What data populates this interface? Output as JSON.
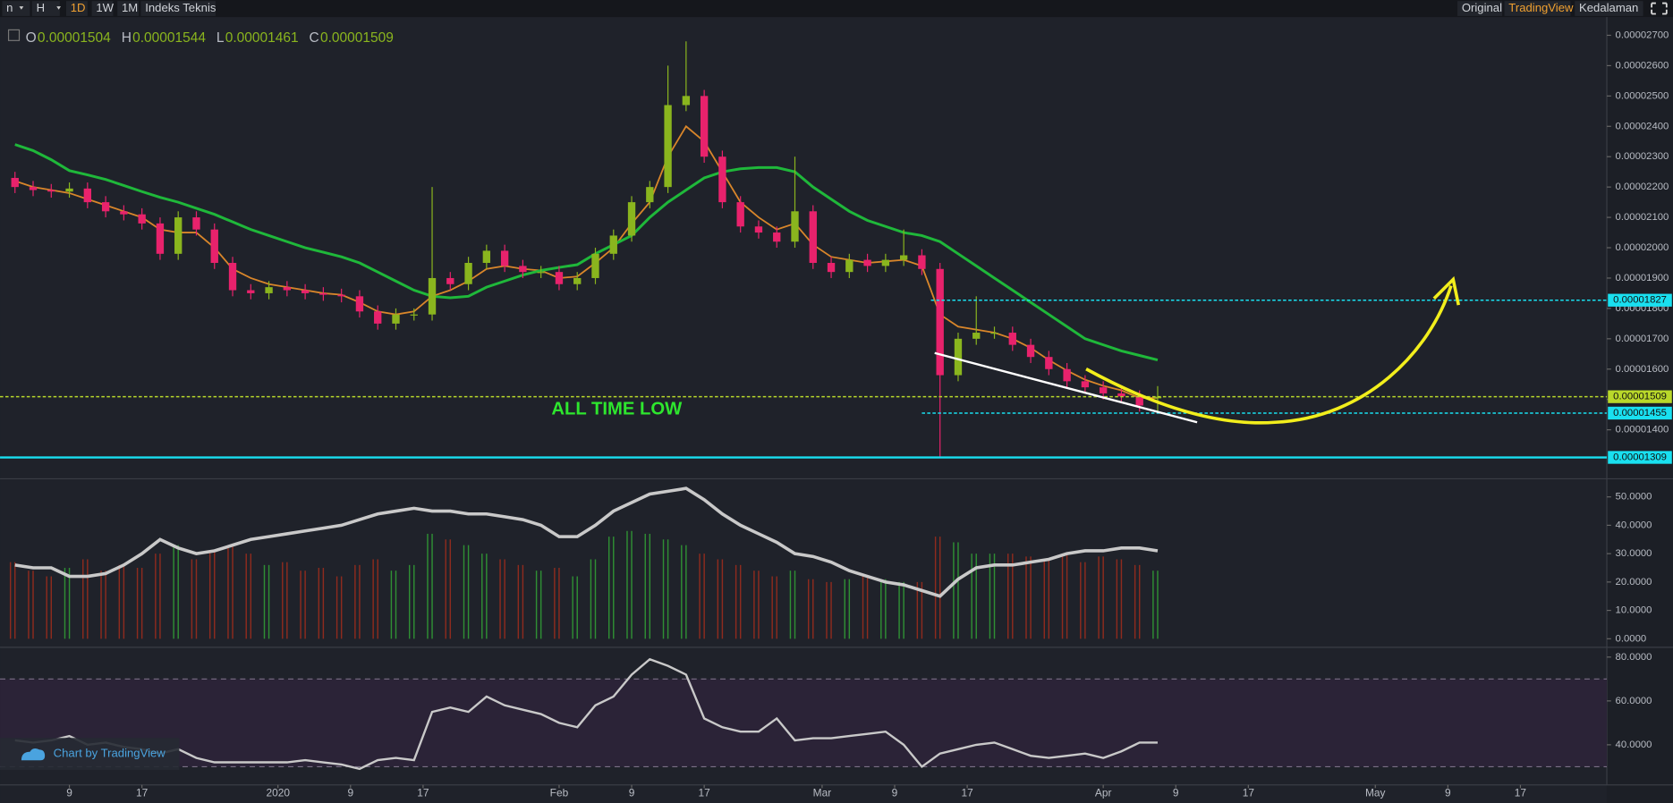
{
  "toolbar": {
    "left": [
      "n",
      "H",
      "1D",
      "1W",
      "1M",
      "Indeks Teknis"
    ],
    "left_active": 2,
    "right": [
      "Original",
      "TradingView",
      "Kedalaman"
    ],
    "right_active": 1
  },
  "ohlc": [
    {
      "key": "O",
      "text": "0.00001504"
    },
    {
      "key": "H",
      "text": "0.00001544"
    },
    {
      "key": "L",
      "text": "0.00001461"
    },
    {
      "key": "C",
      "text": "0.00001509"
    }
  ],
  "annotation": "ALL TIME LOW",
  "watermark": "Chart by TradingView",
  "chart_data": [
    {
      "type": "candlestick",
      "x": [
        -6,
        -4,
        -2,
        0,
        2,
        4,
        6,
        8,
        10,
        12,
        14,
        16,
        18,
        20,
        22,
        24,
        26,
        28,
        30,
        32,
        34,
        36,
        38,
        40,
        42,
        44,
        46,
        48,
        50,
        52,
        54,
        56,
        58,
        60,
        62,
        64,
        66,
        68,
        70,
        72,
        74,
        76,
        78,
        80,
        82,
        84,
        86,
        88,
        90,
        92,
        94,
        96,
        98,
        100,
        102,
        104,
        106,
        108,
        110,
        112,
        114,
        116,
        118,
        120
      ],
      "open": [
        2.23e-05,
        2.2e-05,
        2.19e-05,
        2.185e-05,
        2.195e-05,
        2.15e-05,
        2.12e-05,
        2.11e-05,
        2.08e-05,
        1.98e-05,
        2.1e-05,
        2.06e-05,
        1.95e-05,
        1.86e-05,
        1.85e-05,
        1.87e-05,
        1.86e-05,
        1.85e-05,
        1.845e-05,
        1.84e-05,
        1.79e-05,
        1.75e-05,
        1.78e-05,
        1.78e-05,
        1.9e-05,
        1.88e-05,
        1.95e-05,
        1.99e-05,
        1.94e-05,
        1.92e-05,
        1.92e-05,
        1.88e-05,
        1.9e-05,
        1.98e-05,
        2.04e-05,
        2.15e-05,
        2.2e-05,
        2.47e-05,
        2.5e-05,
        2.3e-05,
        2.15e-05,
        2.07e-05,
        2.05e-05,
        2.02e-05,
        2.12e-05,
        1.95e-05,
        1.92e-05,
        1.96e-05,
        1.94e-05,
        1.96e-05,
        1.975e-05,
        1.93e-05,
        1.58e-05,
        1.7e-05,
        1.72e-05,
        1.72e-05,
        1.68e-05,
        1.64e-05,
        1.6e-05,
        1.56e-05,
        1.54e-05,
        1.52e-05,
        1.51e-05,
        1.504e-05
      ],
      "high": [
        2.25e-05,
        2.22e-05,
        2.21e-05,
        2.215e-05,
        2.215e-05,
        2.17e-05,
        2.14e-05,
        2.13e-05,
        2.1e-05,
        2.12e-05,
        2.12e-05,
        2.08e-05,
        1.97e-05,
        1.88e-05,
        1.89e-05,
        1.89e-05,
        1.88e-05,
        1.87e-05,
        1.865e-05,
        1.86e-05,
        1.81e-05,
        1.8e-05,
        1.8e-05,
        2.2e-05,
        1.92e-05,
        1.97e-05,
        2.01e-05,
        2.01e-05,
        1.96e-05,
        1.94e-05,
        1.94e-05,
        1.92e-05,
        2e-05,
        2.06e-05,
        2.17e-05,
        2.22e-05,
        2.6e-05,
        2.68e-05,
        2.52e-05,
        2.32e-05,
        2.17e-05,
        2.09e-05,
        2.07e-05,
        2.3e-05,
        2.14e-05,
        1.97e-05,
        1.98e-05,
        1.98e-05,
        1.98e-05,
        2.06e-05,
        1.995e-05,
        1.95e-05,
        1.72e-05,
        1.84e-05,
        1.74e-05,
        1.74e-05,
        1.7e-05,
        1.66e-05,
        1.62e-05,
        1.58e-05,
        1.56e-05,
        1.54e-05,
        1.53e-05,
        1.544e-05
      ],
      "low": [
        2.18e-05,
        2.17e-05,
        2.165e-05,
        2.165e-05,
        2.13e-05,
        2.1e-05,
        2.09e-05,
        2.06e-05,
        1.96e-05,
        1.96e-05,
        2.04e-05,
        1.93e-05,
        1.84e-05,
        1.83e-05,
        1.83e-05,
        1.84e-05,
        1.83e-05,
        1.825e-05,
        1.82e-05,
        1.77e-05,
        1.73e-05,
        1.73e-05,
        1.76e-05,
        1.76e-05,
        1.86e-05,
        1.86e-05,
        1.93e-05,
        1.92e-05,
        1.9e-05,
        1.9e-05,
        1.86e-05,
        1.86e-05,
        1.88e-05,
        1.96e-05,
        2.02e-05,
        2.13e-05,
        2.18e-05,
        2.45e-05,
        2.28e-05,
        2.13e-05,
        2.05e-05,
        2.03e-05,
        2e-05,
        2e-05,
        1.93e-05,
        1.9e-05,
        1.9e-05,
        1.92e-05,
        1.92e-05,
        1.94e-05,
        1.91e-05,
        1.31e-05,
        1.56e-05,
        1.68e-05,
        1.7e-05,
        1.66e-05,
        1.62e-05,
        1.58e-05,
        1.54e-05,
        1.52e-05,
        1.5e-05,
        1.49e-05,
        1.46e-05,
        1.461e-05
      ],
      "close": [
        2.2e-05,
        2.19e-05,
        2.185e-05,
        2.195e-05,
        2.15e-05,
        2.12e-05,
        2.11e-05,
        2.08e-05,
        1.98e-05,
        2.1e-05,
        2.06e-05,
        1.95e-05,
        1.86e-05,
        1.85e-05,
        1.87e-05,
        1.86e-05,
        1.85e-05,
        1.845e-05,
        1.84e-05,
        1.79e-05,
        1.75e-05,
        1.78e-05,
        1.78e-05,
        1.9e-05,
        1.88e-05,
        1.95e-05,
        1.99e-05,
        1.94e-05,
        1.92e-05,
        1.92e-05,
        1.88e-05,
        1.9e-05,
        1.98e-05,
        2.04e-05,
        2.15e-05,
        2.2e-05,
        2.47e-05,
        2.5e-05,
        2.3e-05,
        2.15e-05,
        2.07e-05,
        2.05e-05,
        2.02e-05,
        2.12e-05,
        1.95e-05,
        1.92e-05,
        1.96e-05,
        1.94e-05,
        1.96e-05,
        1.975e-05,
        1.93e-05,
        1.58e-05,
        1.7e-05,
        1.72e-05,
        1.72e-05,
        1.68e-05,
        1.64e-05,
        1.6e-05,
        1.56e-05,
        1.54e-05,
        1.52e-05,
        1.51e-05,
        1.48e-05,
        1.509e-05
      ],
      "colors": {
        "up": "#8ab51e",
        "down": "#e8226c"
      },
      "lines": [
        {
          "color": "#d9862a",
          "values": [
            2.22e-05,
            2.2e-05,
            2.19e-05,
            2.18e-05,
            2.16e-05,
            2.14e-05,
            2.12e-05,
            2.1e-05,
            2.06e-05,
            2.05e-05,
            2.05e-05,
            2e-05,
            1.93e-05,
            1.9e-05,
            1.88e-05,
            1.87e-05,
            1.86e-05,
            1.85e-05,
            1.845e-05,
            1.82e-05,
            1.79e-05,
            1.78e-05,
            1.79e-05,
            1.84e-05,
            1.86e-05,
            1.89e-05,
            1.93e-05,
            1.94e-05,
            1.93e-05,
            1.925e-05,
            1.9e-05,
            1.905e-05,
            1.95e-05,
            2e-05,
            2.08e-05,
            2.15e-05,
            2.3e-05,
            2.4e-05,
            2.35e-05,
            2.25e-05,
            2.15e-05,
            2.1e-05,
            2.06e-05,
            2.08e-05,
            2.01e-05,
            1.97e-05,
            1.96e-05,
            1.95e-05,
            1.955e-05,
            1.96e-05,
            1.94e-05,
            1.78e-05,
            1.74e-05,
            1.73e-05,
            1.72e-05,
            1.7e-05,
            1.67e-05,
            1.63e-05,
            1.595e-05,
            1.565e-05,
            1.545e-05,
            1.53e-05,
            1.505e-05,
            1.505e-05
          ]
        },
        {
          "color": "#1fb83a",
          "values": [
            2.34e-05,
            2.32e-05,
            2.29e-05,
            2.254e-05,
            2.24e-05,
            2.225e-05,
            2.205e-05,
            2.185e-05,
            2.166e-05,
            2.15e-05,
            2.13e-05,
            2.11e-05,
            2.085e-05,
            2.06e-05,
            2.04e-05,
            2.02e-05,
            2e-05,
            1.985e-05,
            1.97e-05,
            1.95e-05,
            1.92e-05,
            1.89e-05,
            1.86e-05,
            1.84e-05,
            1.835e-05,
            1.84e-05,
            1.87e-05,
            1.89e-05,
            1.91e-05,
            1.925e-05,
            1.935e-05,
            1.944e-05,
            1.98e-05,
            2.01e-05,
            2.04e-05,
            2.1e-05,
            2.15e-05,
            2.19e-05,
            2.23e-05,
            2.25e-05,
            2.26e-05,
            2.264e-05,
            2.264e-05,
            2.25e-05,
            2.2e-05,
            2.16e-05,
            2.12e-05,
            2.09e-05,
            2.07e-05,
            2.05e-05,
            2.04e-05,
            2.02e-05,
            1.98e-05,
            1.94e-05,
            1.9e-05,
            1.86e-05,
            1.82e-05,
            1.78e-05,
            1.74e-05,
            1.7e-05,
            1.68e-05,
            1.66e-05,
            1.645e-05,
            1.63e-05
          ]
        }
      ],
      "levels": [
        {
          "value": 1.827e-05,
          "label": "0.00001827",
          "color": "#19e0f0",
          "style": "dotted",
          "x_from": 95
        },
        {
          "value": 1.509e-05,
          "label": "0.00001509",
          "color": "#b9d82a",
          "style": "dotted"
        },
        {
          "value": 1.455e-05,
          "label": "0.00001455",
          "color": "#19e0f0",
          "style": "dotted",
          "x_from": 94
        },
        {
          "value": 1.309e-05,
          "label": "0.00001309",
          "color": "#19e0f0",
          "style": "solid"
        }
      ],
      "xlim": [
        -7.06,
        169.41
      ],
      "xticks": [
        {
          "value": 0,
          "label": "9"
        },
        {
          "value": 8,
          "label": "17"
        },
        {
          "value": 23,
          "label": "2020"
        },
        {
          "value": 31,
          "label": "9"
        },
        {
          "value": 39,
          "label": "17"
        },
        {
          "value": 54,
          "label": "Feb"
        },
        {
          "value": 62,
          "label": "9"
        },
        {
          "value": 70,
          "label": "17"
        },
        {
          "value": 83,
          "label": "Mar"
        },
        {
          "value": 91,
          "label": "9"
        },
        {
          "value": 99,
          "label": "17"
        },
        {
          "value": 114,
          "label": "Apr"
        },
        {
          "value": 122,
          "label": "9"
        },
        {
          "value": 130,
          "label": "17"
        },
        {
          "value": 144,
          "label": "May"
        },
        {
          "value": 152,
          "label": "9"
        },
        {
          "value": 160,
          "label": "17"
        }
      ],
      "ylim": [
        1.242e-05,
        2.746e-05
      ],
      "yticks": [
        {
          "value": 1.4e-05,
          "label": "0.00001400"
        },
        {
          "value": 1.5e-05,
          "label": "0.00001500"
        },
        {
          "value": 1.6e-05,
          "label": "0.00001600"
        },
        {
          "value": 1.7e-05,
          "label": "0.00001700"
        },
        {
          "value": 1.8e-05,
          "label": "0.00001800"
        },
        {
          "value": 1.9e-05,
          "label": "0.00001900"
        },
        {
          "value": 2e-05,
          "label": "0.00002000"
        },
        {
          "value": 2.1e-05,
          "label": "0.00002100"
        },
        {
          "value": 2.2e-05,
          "label": "0.00002200"
        },
        {
          "value": 2.3e-05,
          "label": "0.00002300"
        },
        {
          "value": 2.4e-05,
          "label": "0.00002400"
        },
        {
          "value": 2.5e-05,
          "label": "0.00002500"
        },
        {
          "value": 2.6e-05,
          "label": "0.00002600"
        },
        {
          "value": 2.7e-05,
          "label": "0.00002700"
        }
      ]
    },
    {
      "type": "combo",
      "bars": [
        27,
        24,
        22,
        25,
        28,
        24,
        26,
        25,
        30,
        33,
        28,
        31,
        33,
        30,
        26,
        27,
        24,
        25,
        22,
        26,
        28,
        24,
        26,
        37,
        35,
        33,
        30,
        28,
        26,
        24,
        25,
        22,
        28,
        36,
        38,
        37,
        35,
        33,
        30,
        28,
        26,
        24,
        22,
        24,
        21,
        20,
        21,
        22,
        21,
        20,
        20,
        36,
        34,
        30,
        30,
        30,
        29,
        28,
        30,
        27,
        29,
        28,
        26,
        24
      ],
      "bar_colors": {
        "up": "#2f8f34",
        "down": "#8e2b1e"
      },
      "line": {
        "color": "#c9c9c9",
        "values": [
          26,
          25,
          25,
          22,
          22,
          23,
          26,
          30,
          35,
          32,
          30,
          31,
          33,
          35,
          36,
          37,
          38,
          39,
          40,
          42,
          44,
          45,
          46,
          45,
          45,
          44,
          44,
          43,
          42,
          40,
          36,
          36,
          40,
          45,
          48,
          51,
          52,
          53,
          49,
          44,
          40,
          37,
          34,
          30,
          29,
          27,
          24,
          22,
          20,
          19,
          17,
          15,
          21,
          25,
          26,
          26,
          27,
          28,
          30,
          31,
          31,
          32,
          32,
          31
        ]
      },
      "ylim": [
        -2.26,
        56.0
      ],
      "yticks": [
        {
          "value": 0,
          "label": "0.0000"
        },
        {
          "value": 10,
          "label": "10.0000"
        },
        {
          "value": 20,
          "label": "20.0000"
        },
        {
          "value": 30,
          "label": "30.0000"
        },
        {
          "value": 40,
          "label": "40.0000"
        },
        {
          "value": 50,
          "label": "50.0000"
        }
      ]
    },
    {
      "type": "line",
      "values": [
        42,
        41,
        42,
        44,
        40,
        41,
        39,
        38,
        36,
        38,
        34,
        32,
        32,
        32,
        32,
        32,
        33,
        32,
        31,
        29,
        33,
        34,
        33,
        55,
        57,
        55,
        62,
        58,
        56,
        54,
        50,
        48,
        58,
        62,
        72,
        79,
        76,
        72,
        52,
        48,
        46,
        46,
        52,
        42,
        43,
        43,
        44,
        45,
        46,
        40,
        30,
        36,
        38,
        40,
        41,
        38,
        35,
        34,
        35,
        36,
        34,
        37,
        41,
        41
      ],
      "color": "#c9c9c9",
      "bands": [
        30,
        70
      ],
      "band_color": "#2b2337",
      "ylim": [
        22.2,
        83.0
      ],
      "yticks": [
        {
          "value": 40,
          "label": "40.0000"
        },
        {
          "value": 60,
          "label": "60.0000"
        },
        {
          "value": 80,
          "label": "80.0000"
        }
      ]
    }
  ]
}
